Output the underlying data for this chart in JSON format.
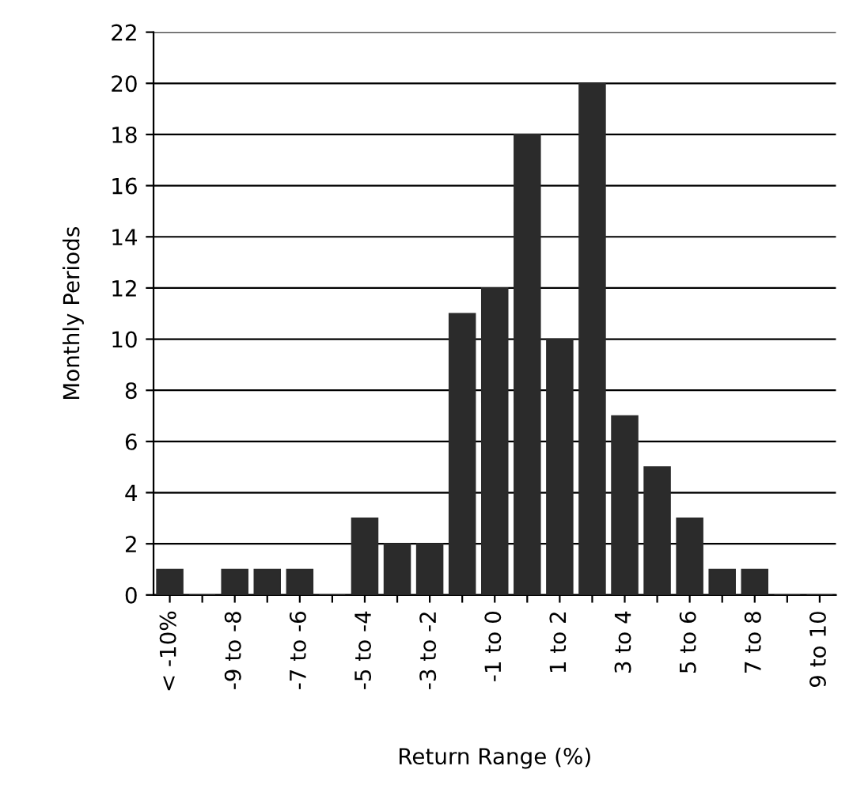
{
  "chart_data": {
    "type": "bar",
    "xlabel": "Return Range (%)",
    "ylabel": "Monthly Periods",
    "categories": [
      "< -10%",
      null,
      "-9 to -8",
      null,
      "-7 to -6",
      null,
      "-5 to -4",
      null,
      "-3 to -2",
      null,
      "-1 to 0",
      null,
      "1 to 2",
      null,
      "3 to 4",
      null,
      "5 to 6",
      null,
      "7 to 8",
      null,
      "9 to 10"
    ],
    "values": [
      1,
      0,
      1,
      1,
      1,
      0,
      3,
      2,
      2,
      11,
      12,
      18,
      10,
      20,
      7,
      5,
      3,
      1,
      1,
      0,
      0
    ],
    "color": "#2b2b2b",
    "ylim": [
      0,
      22
    ],
    "yticks": [
      0,
      2,
      4,
      6,
      8,
      10,
      12,
      14,
      16,
      18,
      20,
      22
    ],
    "grid": "y"
  }
}
